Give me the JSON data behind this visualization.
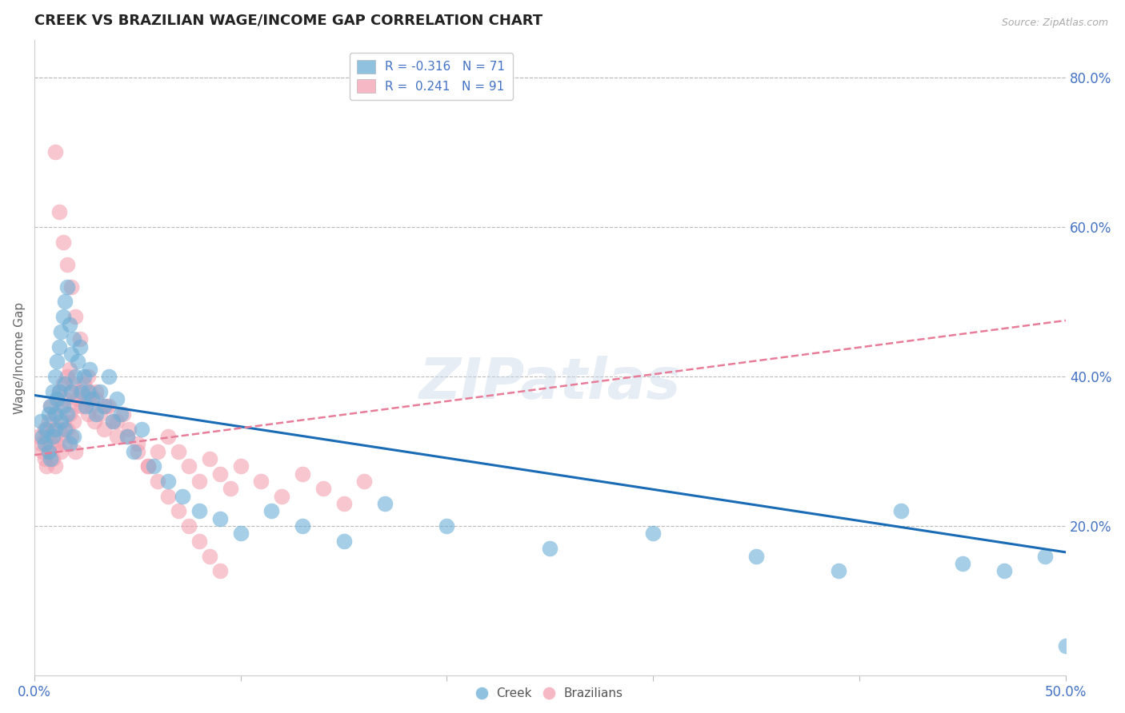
{
  "title": "CREEK VS BRAZILIAN WAGE/INCOME GAP CORRELATION CHART",
  "source": "Source: ZipAtlas.com",
  "ylabel": "Wage/Income Gap",
  "right_yticks": [
    "80.0%",
    "60.0%",
    "40.0%",
    "20.0%"
  ],
  "right_ytick_vals": [
    0.8,
    0.6,
    0.4,
    0.2
  ],
  "xlim": [
    0.0,
    0.5
  ],
  "ylim": [
    0.0,
    0.85
  ],
  "watermark": "ZIPatlas",
  "creek_color": "#6baed6",
  "brazil_color": "#f4a0b0",
  "creek_line_color": "#1a6bb5",
  "brazil_line_color": "#e87d99",
  "creek_R": -0.316,
  "creek_N": 71,
  "brazil_R": 0.241,
  "brazil_N": 91,
  "creek_line_x0": 0.0,
  "creek_line_y0": 0.375,
  "creek_line_x1": 0.5,
  "creek_line_y1": 0.165,
  "brazil_line_x0": 0.0,
  "brazil_line_y0": 0.295,
  "brazil_line_x1": 0.5,
  "brazil_line_y1": 0.475,
  "creek_x": [
    0.003,
    0.004,
    0.005,
    0.006,
    0.007,
    0.007,
    0.008,
    0.008,
    0.009,
    0.009,
    0.01,
    0.01,
    0.01,
    0.011,
    0.011,
    0.012,
    0.012,
    0.013,
    0.013,
    0.014,
    0.014,
    0.015,
    0.015,
    0.015,
    0.016,
    0.016,
    0.017,
    0.017,
    0.018,
    0.018,
    0.019,
    0.019,
    0.02,
    0.021,
    0.022,
    0.023,
    0.024,
    0.025,
    0.026,
    0.027,
    0.028,
    0.03,
    0.032,
    0.034,
    0.036,
    0.038,
    0.04,
    0.042,
    0.045,
    0.048,
    0.052,
    0.058,
    0.065,
    0.072,
    0.08,
    0.09,
    0.1,
    0.115,
    0.13,
    0.15,
    0.17,
    0.2,
    0.25,
    0.3,
    0.35,
    0.39,
    0.42,
    0.45,
    0.47,
    0.49,
    0.5
  ],
  "creek_y": [
    0.34,
    0.32,
    0.31,
    0.33,
    0.35,
    0.3,
    0.36,
    0.29,
    0.38,
    0.32,
    0.4,
    0.33,
    0.35,
    0.42,
    0.37,
    0.44,
    0.38,
    0.46,
    0.34,
    0.48,
    0.36,
    0.5,
    0.39,
    0.33,
    0.52,
    0.35,
    0.47,
    0.31,
    0.43,
    0.38,
    0.45,
    0.32,
    0.4,
    0.42,
    0.44,
    0.38,
    0.4,
    0.36,
    0.38,
    0.41,
    0.37,
    0.35,
    0.38,
    0.36,
    0.4,
    0.34,
    0.37,
    0.35,
    0.32,
    0.3,
    0.33,
    0.28,
    0.26,
    0.24,
    0.22,
    0.21,
    0.19,
    0.22,
    0.2,
    0.18,
    0.23,
    0.2,
    0.17,
    0.19,
    0.16,
    0.14,
    0.22,
    0.15,
    0.14,
    0.16,
    0.04
  ],
  "brazil_x": [
    0.002,
    0.003,
    0.004,
    0.005,
    0.005,
    0.006,
    0.006,
    0.007,
    0.007,
    0.008,
    0.008,
    0.009,
    0.009,
    0.01,
    0.01,
    0.01,
    0.011,
    0.011,
    0.012,
    0.012,
    0.013,
    0.013,
    0.014,
    0.014,
    0.015,
    0.015,
    0.016,
    0.016,
    0.017,
    0.017,
    0.018,
    0.018,
    0.019,
    0.019,
    0.02,
    0.02,
    0.021,
    0.022,
    0.023,
    0.024,
    0.025,
    0.026,
    0.027,
    0.028,
    0.029,
    0.03,
    0.032,
    0.034,
    0.036,
    0.038,
    0.04,
    0.043,
    0.046,
    0.05,
    0.055,
    0.06,
    0.065,
    0.07,
    0.075,
    0.08,
    0.085,
    0.09,
    0.095,
    0.1,
    0.11,
    0.12,
    0.13,
    0.14,
    0.15,
    0.16,
    0.026,
    0.03,
    0.035,
    0.04,
    0.045,
    0.05,
    0.055,
    0.06,
    0.065,
    0.07,
    0.075,
    0.08,
    0.085,
    0.09,
    0.01,
    0.012,
    0.014,
    0.016,
    0.018,
    0.02,
    0.022
  ],
  "brazil_y": [
    0.32,
    0.31,
    0.3,
    0.33,
    0.29,
    0.32,
    0.28,
    0.34,
    0.3,
    0.36,
    0.31,
    0.33,
    0.29,
    0.35,
    0.28,
    0.32,
    0.37,
    0.31,
    0.38,
    0.33,
    0.36,
    0.3,
    0.39,
    0.34,
    0.37,
    0.31,
    0.4,
    0.33,
    0.41,
    0.35,
    0.38,
    0.32,
    0.39,
    0.34,
    0.36,
    0.3,
    0.37,
    0.38,
    0.36,
    0.39,
    0.37,
    0.35,
    0.38,
    0.36,
    0.34,
    0.37,
    0.35,
    0.33,
    0.36,
    0.34,
    0.32,
    0.35,
    0.33,
    0.31,
    0.28,
    0.3,
    0.32,
    0.3,
    0.28,
    0.26,
    0.29,
    0.27,
    0.25,
    0.28,
    0.26,
    0.24,
    0.27,
    0.25,
    0.23,
    0.26,
    0.4,
    0.38,
    0.36,
    0.34,
    0.32,
    0.3,
    0.28,
    0.26,
    0.24,
    0.22,
    0.2,
    0.18,
    0.16,
    0.14,
    0.7,
    0.62,
    0.58,
    0.55,
    0.52,
    0.48,
    0.45
  ]
}
